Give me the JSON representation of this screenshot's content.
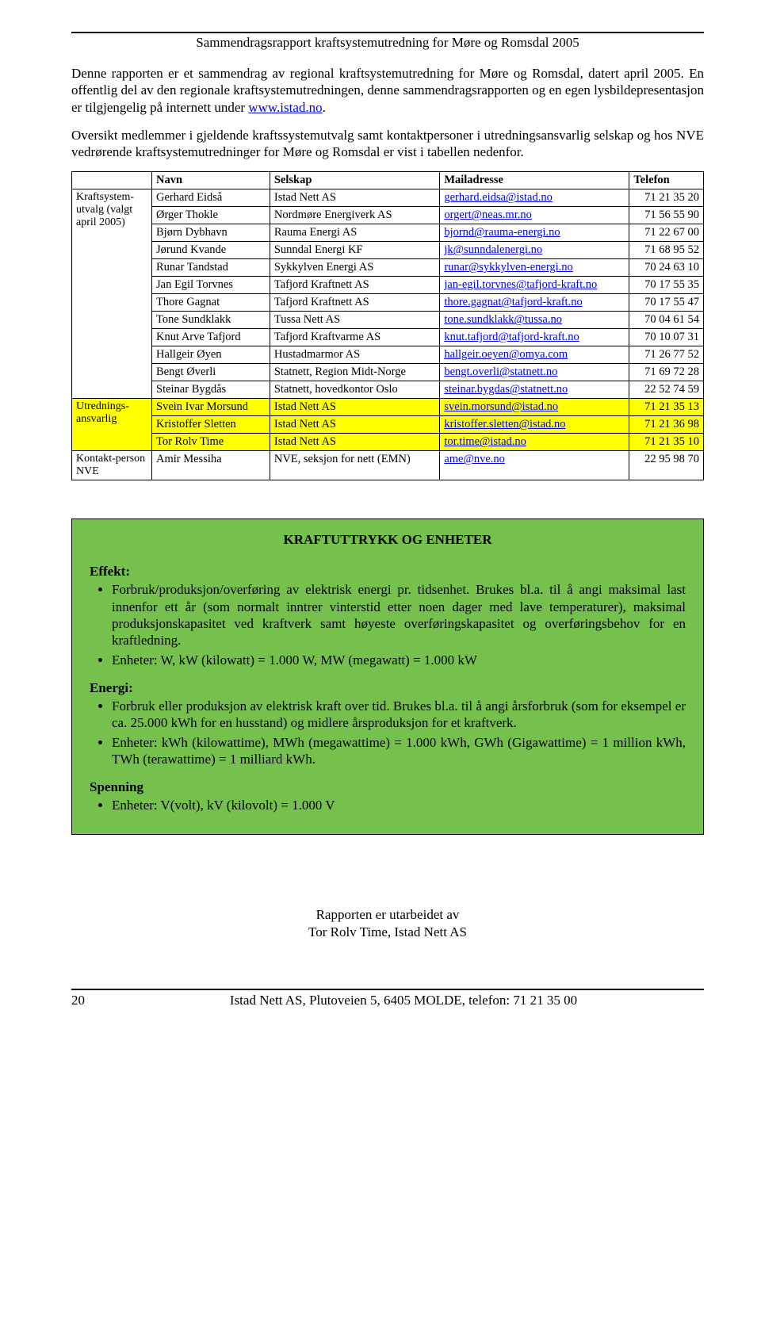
{
  "header": {
    "title": "Sammendragsrapport kraftsystemutredning for Møre og Romsdal 2005"
  },
  "intro": {
    "p1_a": "Denne rapporten er et sammendrag av regional kraftsystemutredning for Møre og Romsdal, datert april 2005. En offentlig del av den regionale kraftsystemutredningen, denne sammendragsrapporten og en egen lysbildepresentasjon er tilgjengelig på internett under ",
    "p1_link": "www.istad.no",
    "p1_b": ".",
    "p2": "Oversikt medlemmer i gjeldende kraftssystemutvalg samt kontaktpersoner i utredningsansvarlig selskap og hos NVE vedrørende kraftsystemutredninger for Møre og Romsdal er vist i tabellen nedenfor."
  },
  "table": {
    "headers": [
      "Navn",
      "Selskap",
      "Mailadresse",
      "Telefon"
    ],
    "groups": [
      {
        "label": "Kraftsystem-utvalg (valgt april 2005)",
        "rows": [
          {
            "n": "Gerhard Eidså",
            "s": "Istad Nett AS",
            "m": "gerhard.eidsa@istad.no",
            "t": "71 21 35 20",
            "hl": false
          },
          {
            "n": "Ørger Thokle",
            "s": "Nordmøre Energiverk AS",
            "m": "orgert@neas.mr.no",
            "t": "71 56 55 90",
            "hl": false
          },
          {
            "n": "Bjørn Dybhavn",
            "s": "Rauma Energi AS",
            "m": "bjornd@rauma-energi.no",
            "t": "71 22 67 00",
            "hl": false
          },
          {
            "n": "Jørund Kvande",
            "s": "Sunndal Energi KF",
            "m": "jk@sunndalenergi.no",
            "t": "71 68 95 52",
            "hl": false
          },
          {
            "n": "Runar Tandstad",
            "s": "Sykkylven Energi AS",
            "m": "runar@sykkylven-energi.no",
            "t": "70 24 63 10",
            "hl": false
          },
          {
            "n": "Jan Egil Torvnes",
            "s": "Tafjord Kraftnett AS",
            "m": "jan-egil.torvnes@tafjord-kraft.no",
            "t": "70 17 55 35",
            "hl": false
          },
          {
            "n": "Thore Gagnat",
            "s": "Tafjord Kraftnett AS",
            "m": "thore.gagnat@tafjord-kraft.no",
            "t": "70 17 55 47",
            "hl": false
          },
          {
            "n": "Tone Sundklakk",
            "s": "Tussa Nett AS",
            "m": "tone.sundklakk@tussa.no",
            "t": "70 04 61 54",
            "hl": false
          },
          {
            "n": "Knut Arve Tafjord",
            "s": "Tafjord Kraftvarme AS",
            "m": "knut.tafjord@tafjord-kraft.no",
            "t": "70 10 07 31",
            "hl": false
          },
          {
            "n": "Hallgeir Øyen",
            "s": "Hustadmarmor AS",
            "m": "hallgeir.oeyen@omya.com",
            "t": "71 26 77 52",
            "hl": false
          },
          {
            "n": "Bengt Øverli",
            "s": "Statnett, Region Midt-Norge",
            "m": "bengt.overli@statnett.no",
            "t": "71 69 72 28",
            "hl": false
          },
          {
            "n": "Steinar Bygdås",
            "s": "Statnett, hovedkontor Oslo",
            "m": "steinar.bygdas@statnett.no",
            "t": "22 52 74 59",
            "hl": false
          }
        ]
      },
      {
        "label": "Utrednings-ansvarlig",
        "rows": [
          {
            "n": "Svein Ivar Morsund",
            "s": "Istad Nett AS",
            "m": "svein.morsund@istad.no",
            "t": "71 21 35 13",
            "hl": true
          },
          {
            "n": "Kristoffer Sletten",
            "s": "Istad Nett AS",
            "m": "kristoffer.sletten@istad.no",
            "t": "71 21 36 98",
            "hl": true
          },
          {
            "n": "Tor Rolv Time",
            "s": "Istad Nett AS",
            "m": "tor.time@istad.no",
            "t": "71 21 35 10",
            "hl": true
          }
        ]
      },
      {
        "label": "Kontakt-person NVE",
        "rows": [
          {
            "n": "Amir Messiha",
            "s": "NVE, seksjon for nett (EMN)",
            "m": "ame@nve.no",
            "t": "22 95 98 70",
            "hl": false
          }
        ]
      }
    ]
  },
  "box": {
    "title": "KRAFTUTTRYKK OG ENHETER",
    "sections": [
      {
        "label": "Effekt:",
        "bullets": [
          "Forbruk/produksjon/overføring av elektrisk energi pr. tidsenhet. Brukes bl.a. til å angi maksimal last innenfor ett år (som normalt inntrer vinterstid etter noen dager med lave temperaturer), maksimal produksjonskapasitet ved kraftverk samt høyeste overføringskapasitet og overføringsbehov for en kraftledning.",
          "Enheter: W, kW (kilowatt) = 1.000 W, MW (megawatt) = 1.000 kW"
        ]
      },
      {
        "label": "Energi:",
        "bullets": [
          "Forbruk eller produksjon av elektrisk kraft over tid. Brukes bl.a. til å angi årsforbruk  (som for eksempel er ca. 25.000 kWh for en husstand) og midlere årsproduksjon for et kraftverk.",
          "Enheter: kWh (kilowattime), MWh (megawattime) = 1.000 kWh, GWh (Gigawattime) = 1 million kWh, TWh (terawattime) = 1 milliard kWh."
        ]
      },
      {
        "label": "Spenning",
        "bullets": [
          "Enheter: V(volt), kV (kilovolt) = 1.000 V"
        ]
      }
    ]
  },
  "prepared": {
    "l1": "Rapporten er utarbeidet av",
    "l2": "Tor Rolv Time, Istad Nett AS"
  },
  "footer": {
    "page": "20",
    "text": "Istad Nett AS, Plutoveien 5, 6405 MOLDE, telefon: 71 21 35 00"
  }
}
